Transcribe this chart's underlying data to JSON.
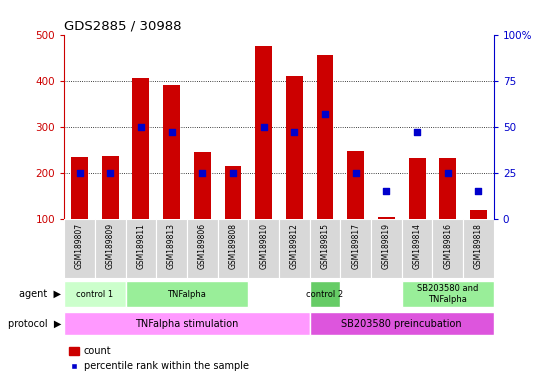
{
  "title": "GDS2885 / 30988",
  "samples": [
    "GSM189807",
    "GSM189809",
    "GSM189811",
    "GSM189813",
    "GSM189806",
    "GSM189808",
    "GSM189810",
    "GSM189812",
    "GSM189815",
    "GSM189817",
    "GSM189819",
    "GSM189814",
    "GSM189816",
    "GSM189818"
  ],
  "count_values": [
    235,
    237,
    405,
    390,
    245,
    215,
    475,
    410,
    455,
    248,
    105,
    233,
    233,
    120
  ],
  "percentile_values": [
    25,
    25,
    50,
    47,
    25,
    25,
    50,
    47,
    57,
    25,
    15,
    47,
    25,
    15
  ],
  "ylim_left": [
    100,
    500
  ],
  "ylim_right": [
    0,
    100
  ],
  "yticks_left": [
    100,
    200,
    300,
    400,
    500
  ],
  "yticks_right": [
    0,
    25,
    50,
    75,
    100
  ],
  "bar_color": "#cc0000",
  "dot_color": "#0000cc",
  "agent_groups": [
    {
      "label": "control 1",
      "start": 0,
      "end": 1,
      "color": "#ccffcc"
    },
    {
      "label": "TNFalpha",
      "start": 2,
      "end": 5,
      "color": "#99ee99"
    },
    {
      "label": "control 2",
      "start": 8,
      "end": 8,
      "color": "#66cc66"
    },
    {
      "label": "SB203580 and\nTNFalpha",
      "start": 11,
      "end": 13,
      "color": "#99ee99"
    }
  ],
  "protocol_groups": [
    {
      "label": "TNFalpha stimulation",
      "start": 0,
      "end": 7,
      "color": "#ff99ff"
    },
    {
      "label": "SB203580 preincubation",
      "start": 8,
      "end": 13,
      "color": "#dd55dd"
    }
  ],
  "legend_count_color": "#cc0000",
  "legend_dot_color": "#0000cc",
  "left_axis_color": "#cc0000",
  "right_axis_color": "#0000cc",
  "label_bg_color": "#d8d8d8",
  "bar_width": 0.55
}
